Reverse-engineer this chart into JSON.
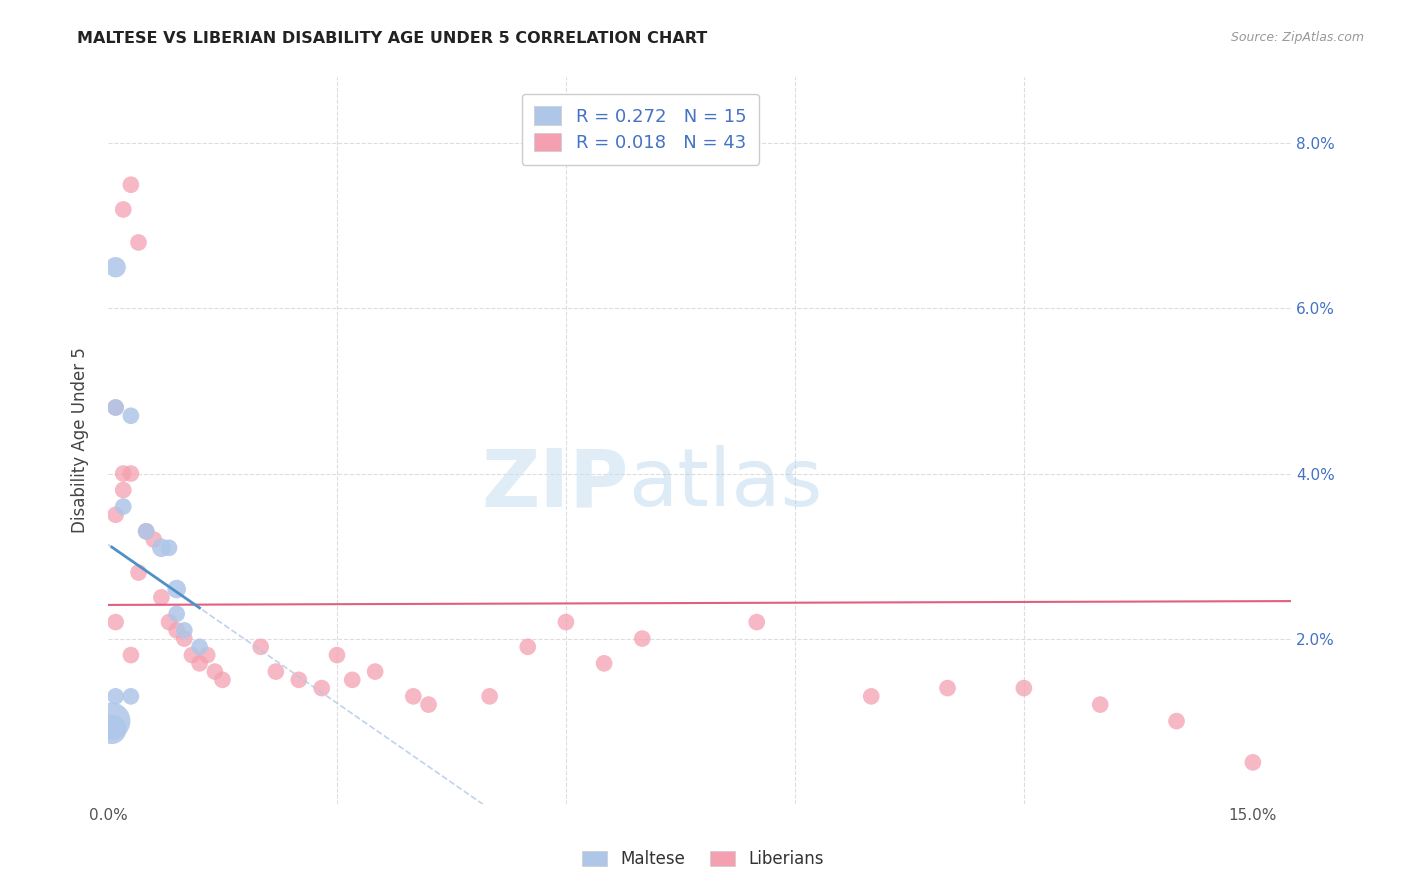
{
  "title": "MALTESE VS LIBERIAN DISABILITY AGE UNDER 5 CORRELATION CHART",
  "source": "Source: ZipAtlas.com",
  "ylabel": "Disability Age Under 5",
  "xlim": [
    0.0,
    0.155
  ],
  "ylim": [
    0.0,
    0.088
  ],
  "maltese_color": "#aec6e8",
  "liberian_color": "#f4a0b0",
  "maltese_line_color": "#5090c8",
  "liberian_line_color": "#e06080",
  "maltese_dashed_color": "#b0c8e8",
  "maltese_R": 0.272,
  "maltese_N": 15,
  "liberian_R": 0.018,
  "liberian_N": 43,
  "maltese_x": [
    0.0005,
    0.0005,
    0.001,
    0.001,
    0.002,
    0.003,
    0.003,
    0.005,
    0.007,
    0.008,
    0.009,
    0.009,
    0.01,
    0.012,
    0.001
  ],
  "maltese_y": [
    0.01,
    0.009,
    0.065,
    0.013,
    0.036,
    0.047,
    0.013,
    0.033,
    0.031,
    0.031,
    0.026,
    0.023,
    0.021,
    0.019,
    0.048
  ],
  "maltese_sizes": [
    400,
    250,
    120,
    80,
    80,
    80,
    80,
    80,
    100,
    80,
    100,
    80,
    80,
    80,
    80
  ],
  "liberian_x": [
    0.001,
    0.001,
    0.001,
    0.002,
    0.002,
    0.003,
    0.003,
    0.004,
    0.005,
    0.006,
    0.007,
    0.008,
    0.009,
    0.01,
    0.011,
    0.012,
    0.013,
    0.014,
    0.015,
    0.02,
    0.022,
    0.025,
    0.028,
    0.03,
    0.032,
    0.035,
    0.04,
    0.042,
    0.05,
    0.055,
    0.06,
    0.065,
    0.07,
    0.085,
    0.1,
    0.11,
    0.12,
    0.13,
    0.14,
    0.15,
    0.002,
    0.003,
    0.004
  ],
  "liberian_y": [
    0.048,
    0.035,
    0.022,
    0.04,
    0.038,
    0.04,
    0.018,
    0.028,
    0.033,
    0.032,
    0.025,
    0.022,
    0.021,
    0.02,
    0.018,
    0.017,
    0.018,
    0.016,
    0.015,
    0.019,
    0.016,
    0.015,
    0.014,
    0.018,
    0.015,
    0.016,
    0.013,
    0.012,
    0.013,
    0.019,
    0.022,
    0.017,
    0.02,
    0.022,
    0.013,
    0.014,
    0.014,
    0.012,
    0.01,
    0.005,
    0.072,
    0.075,
    0.068
  ],
  "liberian_sizes": [
    80,
    80,
    80,
    80,
    80,
    80,
    80,
    80,
    80,
    80,
    80,
    80,
    80,
    80,
    80,
    80,
    80,
    80,
    80,
    80,
    80,
    80,
    80,
    80,
    80,
    80,
    80,
    80,
    80,
    80,
    80,
    80,
    80,
    80,
    80,
    80,
    80,
    80,
    80,
    80,
    80,
    80,
    80
  ],
  "background_color": "#ffffff",
  "grid_color": "#dddddd",
  "watermark_color": "#c8dff0",
  "watermark_alpha": 0.55
}
